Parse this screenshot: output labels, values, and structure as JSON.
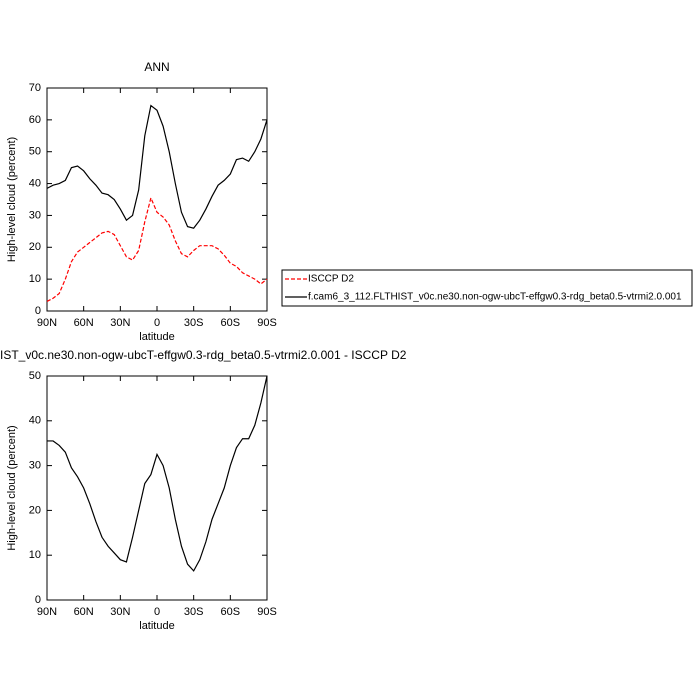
{
  "chart_data": [
    {
      "type": "line",
      "title": "ANN",
      "xlabel": "latitude",
      "ylabel": "High-level cloud (percent)",
      "x": [
        90,
        85,
        80,
        75,
        70,
        65,
        60,
        55,
        50,
        45,
        40,
        35,
        30,
        25,
        20,
        15,
        10,
        5,
        0,
        -5,
        -10,
        -15,
        -20,
        -25,
        -30,
        -35,
        -40,
        -45,
        -50,
        -55,
        -60,
        -65,
        -70,
        -75,
        -80,
        -85,
        -90
      ],
      "series": [
        {
          "name": "ISCCP D2",
          "color": "#ff0000",
          "dashed": true,
          "values": [
            3,
            4,
            5.5,
            10,
            15.5,
            18.5,
            20,
            21.5,
            23,
            24.5,
            25,
            24,
            20.5,
            17,
            16,
            19,
            28,
            35.5,
            31,
            29.5,
            27,
            22,
            18,
            17,
            19,
            20.5,
            20.5,
            20.5,
            19.5,
            17.5,
            15,
            14,
            12,
            11,
            10,
            8.5,
            10
          ]
        },
        {
          "name": "f.cam6_3_112.FLTHIST_v0c.ne30.non-ogw-ubcT-effgw0.3-rdg_beta0.5-vtrmi2.0.001",
          "color": "#000000",
          "dashed": false,
          "values": [
            38.5,
            39.5,
            40,
            41,
            45,
            45.5,
            44,
            41.5,
            39.5,
            37,
            36.5,
            35,
            32,
            28.5,
            30,
            38,
            55,
            64.5,
            63,
            58,
            50,
            40,
            31,
            26.5,
            26,
            28.5,
            32,
            36,
            39.5,
            41,
            43,
            47.5,
            48,
            47,
            50,
            54,
            60
          ]
        }
      ],
      "xlim": [
        90,
        -90
      ],
      "xticks": [
        {
          "value": 90,
          "label": "90N"
        },
        {
          "value": 60,
          "label": "60N"
        },
        {
          "value": 30,
          "label": "30N"
        },
        0,
        {
          "value": -30,
          "label": "30S"
        },
        {
          "value": -60,
          "label": "60S"
        },
        {
          "value": -90,
          "label": "90S"
        }
      ],
      "ylim": [
        0,
        70
      ],
      "yticks": [
        0,
        10,
        20,
        30,
        40,
        50,
        60,
        70
      ],
      "legend": "right"
    },
    {
      "type": "line",
      "title": "IST_v0c.ne30.non-ogw-ubcT-effgw0.3-rdg_beta0.5-vtrmi2.0.001 - ISCCP D2",
      "xlabel": "latitude",
      "ylabel": "High-level cloud (percent)",
      "x": [
        90,
        85,
        80,
        75,
        70,
        65,
        60,
        55,
        50,
        45,
        40,
        35,
        30,
        25,
        20,
        15,
        10,
        5,
        0,
        -5,
        -10,
        -15,
        -20,
        -25,
        -30,
        -35,
        -40,
        -45,
        -50,
        -55,
        -60,
        -65,
        -70,
        -75,
        -80,
        -85,
        -90
      ],
      "series": [
        {
          "color": "#000000",
          "dashed": false,
          "values": [
            35.5,
            35.5,
            34.5,
            33,
            29.5,
            27.5,
            25,
            21.5,
            17.5,
            14,
            12,
            10.5,
            9,
            8.5,
            14,
            20,
            26,
            28,
            32.5,
            30,
            25,
            18,
            12,
            8,
            6.5,
            9,
            13,
            18,
            21.5,
            25,
            30,
            34,
            36,
            36,
            39,
            44,
            50
          ]
        }
      ],
      "xlim": [
        90,
        -90
      ],
      "xticks": [
        {
          "value": 90,
          "label": "90N"
        },
        {
          "value": 60,
          "label": "60N"
        },
        {
          "value": 30,
          "label": "30N"
        },
        0,
        {
          "value": -30,
          "label": "30S"
        },
        {
          "value": -60,
          "label": "60S"
        },
        {
          "value": -90,
          "label": "90S"
        }
      ],
      "ylim": [
        0,
        50
      ],
      "yticks": [
        0,
        10,
        20,
        30,
        40,
        50
      ]
    }
  ]
}
